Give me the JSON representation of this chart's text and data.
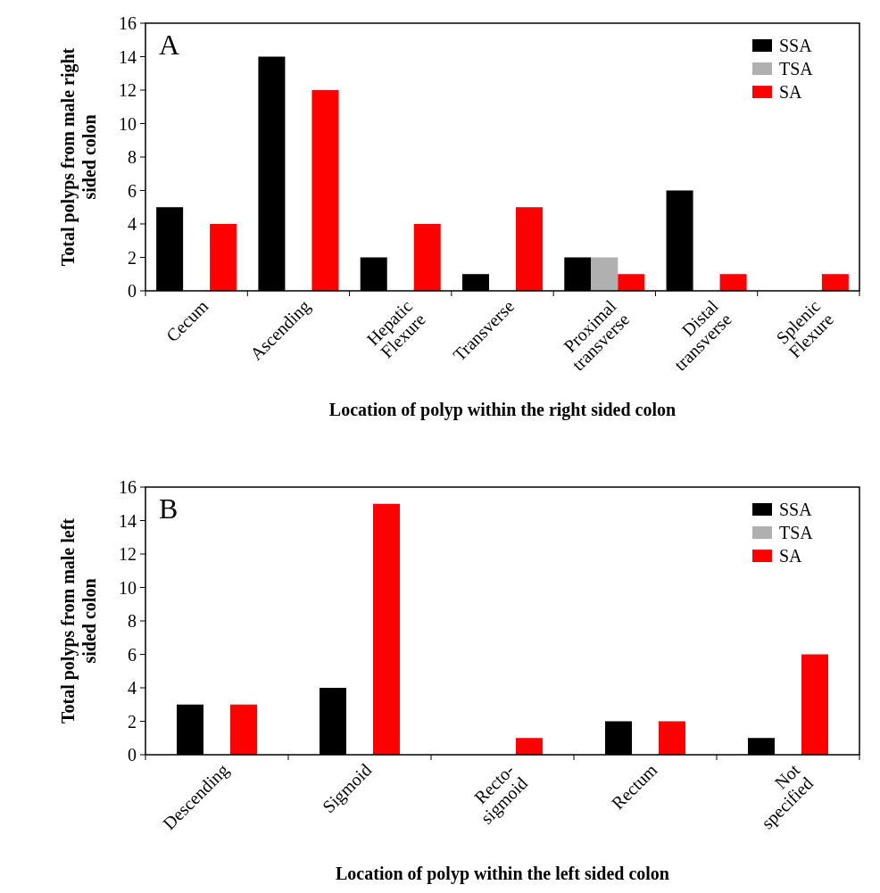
{
  "chart_data": [
    {
      "type": "bar",
      "title": "A",
      "xlabel": "Location of polyp within the right sided colon",
      "ylabel": "Total polyps from male right sided colon",
      "categories": [
        "Cecum",
        "Ascending",
        "Hepatic\nFlexure",
        "Transverse",
        "Proximal\ntransverse",
        "Distal\ntransverse",
        "Splenic\nFlexure"
      ],
      "series": [
        {
          "name": "SSA",
          "color": "#000000",
          "values": [
            5,
            14,
            2,
            1,
            2,
            6,
            0
          ]
        },
        {
          "name": "TSA",
          "color": "#b0b0b0",
          "values": [
            0,
            0,
            0,
            0,
            2,
            0,
            0
          ]
        },
        {
          "name": "SA",
          "color": "#ff0000",
          "values": [
            4,
            12,
            4,
            5,
            1,
            1,
            1
          ]
        }
      ],
      "ylim": [
        0,
        16
      ],
      "yticks": [
        0,
        2,
        4,
        6,
        8,
        10,
        12,
        14,
        16
      ],
      "legend": "top right",
      "grid": false
    },
    {
      "type": "bar",
      "title": "B",
      "xlabel": "Location of polyp within the left sided colon",
      "ylabel": "Total polyps from male left sided colon",
      "categories": [
        "Descending",
        "Sigmoid",
        "Recto-\nsigmoid",
        "Rectum",
        "Not\nspecified"
      ],
      "series": [
        {
          "name": "SSA",
          "color": "#000000",
          "values": [
            3,
            4,
            0,
            2,
            1
          ]
        },
        {
          "name": "TSA",
          "color": "#b0b0b0",
          "values": [
            0,
            0,
            0,
            0,
            0
          ]
        },
        {
          "name": "SA",
          "color": "#ff0000",
          "values": [
            3,
            15,
            1,
            2,
            6
          ]
        }
      ],
      "ylim": [
        0,
        16
      ],
      "yticks": [
        0,
        2,
        4,
        6,
        8,
        10,
        12,
        14,
        16
      ],
      "legend": "top right",
      "grid": false
    }
  ]
}
